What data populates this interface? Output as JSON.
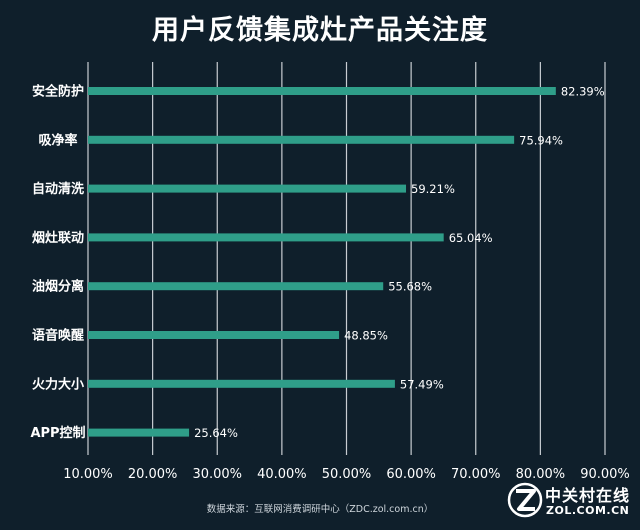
{
  "chart_data": {
    "type": "bar",
    "orientation": "horizontal",
    "title": "用户反馈集成灶产品关注度",
    "categories": [
      "安全防护",
      "吸净率",
      "自动清洗",
      "烟灶联动",
      "油烟分离",
      "语音唤醒",
      "火力大小",
      "APP控制"
    ],
    "values": [
      82.39,
      75.94,
      59.21,
      65.04,
      55.68,
      48.85,
      57.49,
      25.64
    ],
    "value_labels": [
      "82.39%",
      "75.94%",
      "59.21%",
      "65.04%",
      "55.68%",
      "48.85%",
      "57.49%",
      "25.64%"
    ],
    "x_ticks": [
      "10.00%",
      "20.00%",
      "30.00%",
      "40.00%",
      "50.00%",
      "60.00%",
      "70.00%",
      "80.00%",
      "90.00%"
    ],
    "xlim": [
      10,
      90
    ],
    "grid": true,
    "colors": {
      "bar": "#2f9e89",
      "background": "#0f1f2b",
      "grid": "#c8cdd2",
      "text": "#ffffff"
    }
  },
  "source": "数据来源：互联网消费调研中心（ZDC.zol.com.cn）",
  "logo": {
    "name": "中关村在线",
    "domain": "ZOL.COM.CN"
  }
}
